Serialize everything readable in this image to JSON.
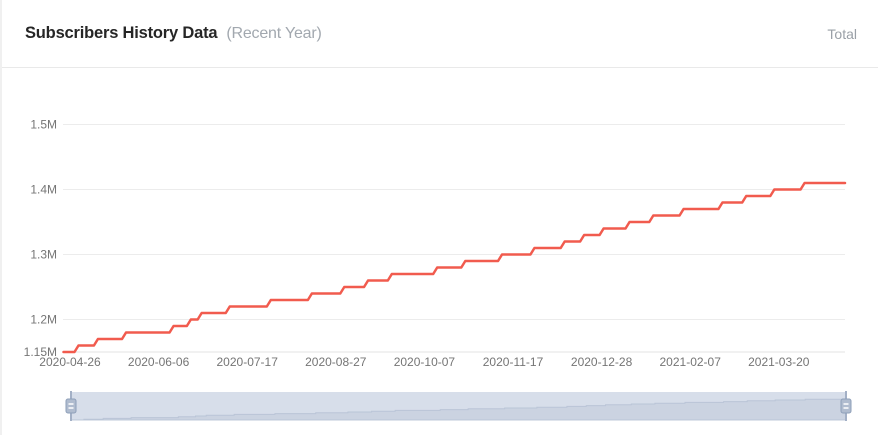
{
  "header": {
    "title": "Subscribers History Data",
    "subtitle": "(Recent Year)",
    "legend_total": "Total"
  },
  "chart_data": {
    "type": "line",
    "step": true,
    "title": "Subscribers History Data (Recent Year)",
    "xlabel": "",
    "ylabel": "",
    "legend": [
      "Total"
    ],
    "legend_position": "top-right",
    "grid": true,
    "ylim": [
      1.15,
      1.5
    ],
    "y_ticks": [
      {
        "label": "1.15M",
        "value": 1.15
      },
      {
        "label": "1.2M",
        "value": 1.2
      },
      {
        "label": "1.3M",
        "value": 1.3
      },
      {
        "label": "1.4M",
        "value": 1.4
      },
      {
        "label": "1.5M",
        "value": 1.5
      }
    ],
    "x_ticks": [
      "2020-04-26",
      "2020-06-06",
      "2020-07-17",
      "2020-08-27",
      "2020-10-07",
      "2020-11-17",
      "2020-12-28",
      "2021-02-07",
      "2021-03-20"
    ],
    "x_range": [
      "2020-04-23",
      "2021-04-19"
    ],
    "series": [
      {
        "name": "Total",
        "unit": "M subscribers",
        "color": "#f15b4e",
        "points": [
          {
            "date": "2020-04-23",
            "m": 1.15
          },
          {
            "date": "2020-04-29",
            "m": 1.16
          },
          {
            "date": "2020-05-08",
            "m": 1.17
          },
          {
            "date": "2020-05-21",
            "m": 1.18
          },
          {
            "date": "2020-06-12",
            "m": 1.19
          },
          {
            "date": "2020-06-20",
            "m": 1.2
          },
          {
            "date": "2020-06-25",
            "m": 1.21
          },
          {
            "date": "2020-07-08",
            "m": 1.22
          },
          {
            "date": "2020-07-27",
            "m": 1.23
          },
          {
            "date": "2020-08-15",
            "m": 1.24
          },
          {
            "date": "2020-08-30",
            "m": 1.25
          },
          {
            "date": "2020-09-10",
            "m": 1.26
          },
          {
            "date": "2020-09-21",
            "m": 1.27
          },
          {
            "date": "2020-10-12",
            "m": 1.28
          },
          {
            "date": "2020-10-25",
            "m": 1.29
          },
          {
            "date": "2020-11-11",
            "m": 1.3
          },
          {
            "date": "2020-11-26",
            "m": 1.31
          },
          {
            "date": "2020-12-10",
            "m": 1.32
          },
          {
            "date": "2020-12-19",
            "m": 1.33
          },
          {
            "date": "2020-12-28",
            "m": 1.34
          },
          {
            "date": "2021-01-09",
            "m": 1.35
          },
          {
            "date": "2021-01-20",
            "m": 1.36
          },
          {
            "date": "2021-02-03",
            "m": 1.37
          },
          {
            "date": "2021-02-21",
            "m": 1.38
          },
          {
            "date": "2021-03-04",
            "m": 1.39
          },
          {
            "date": "2021-03-17",
            "m": 1.4
          },
          {
            "date": "2021-03-31",
            "m": 1.41
          }
        ],
        "end_date": "2021-04-19"
      }
    ],
    "datazoom": {
      "start_pct": 0,
      "end_pct": 100
    }
  },
  "colors": {
    "line": "#f15b4e",
    "gridline": "#ececec",
    "axis_line": "#e3e3e3",
    "axis_label": "#757575",
    "slider_track": "#e2e7f1",
    "slider_shadow_fill": "#d3d9e6",
    "slider_shadow_line": "#bfc8d9",
    "slider_filler": "rgba(167,183,204,0.18)",
    "slider_handle_fill": "#b0bccf",
    "slider_handle_border": "#8e9fb9",
    "slider_stem": "#a3b0c6"
  }
}
